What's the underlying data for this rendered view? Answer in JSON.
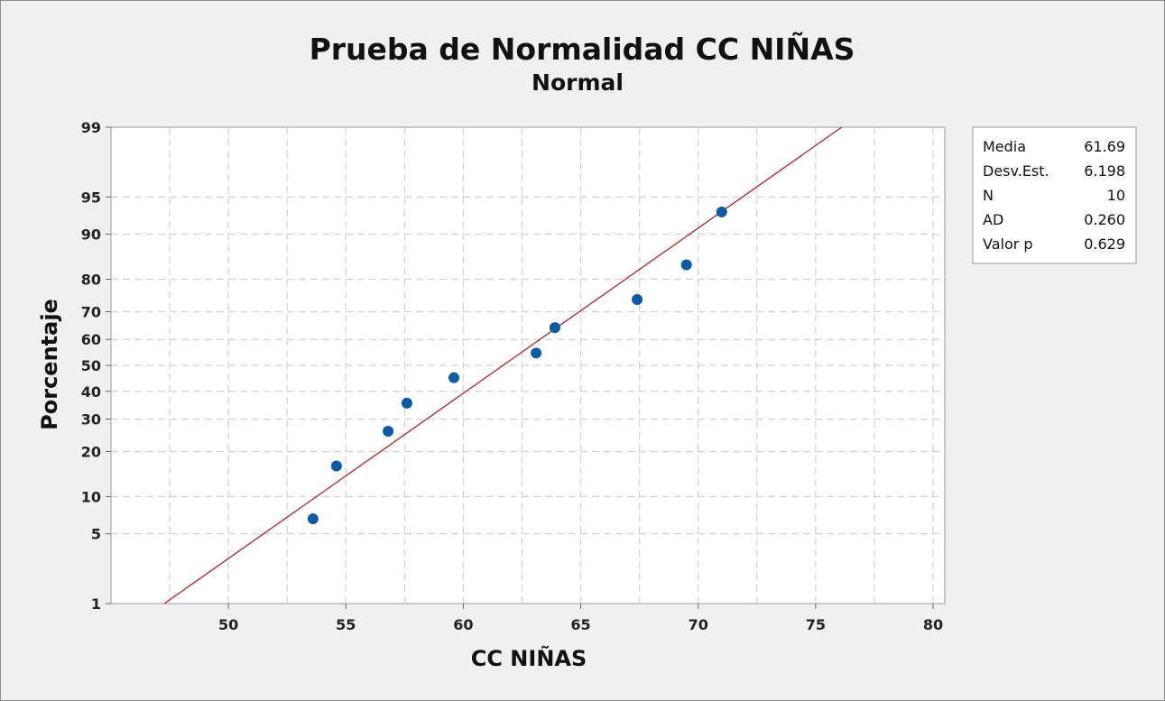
{
  "chart_data": {
    "type": "scatter",
    "title": "Prueba de Normalidad CC NIÑAS",
    "subtitle": "Normal",
    "xlabel": "CC NIÑAS",
    "ylabel": "Porcentaje",
    "xlim": [
      45,
      80.5
    ],
    "ylim": [
      1,
      99
    ],
    "x_ticks": [
      50,
      55,
      60,
      65,
      70,
      75,
      80
    ],
    "y_ticks": [
      1,
      5,
      10,
      20,
      30,
      40,
      50,
      60,
      70,
      80,
      90,
      95,
      99
    ],
    "y_scale": "normal-probability",
    "grid": true,
    "points": [
      {
        "x": 53.6,
        "y": 6.7
      },
      {
        "x": 54.6,
        "y": 16.3
      },
      {
        "x": 56.8,
        "y": 26.0
      },
      {
        "x": 57.6,
        "y": 35.6
      },
      {
        "x": 59.6,
        "y": 45.2
      },
      {
        "x": 63.1,
        "y": 54.8
      },
      {
        "x": 63.9,
        "y": 64.4
      },
      {
        "x": 67.4,
        "y": 74.0
      },
      {
        "x": 69.5,
        "y": 83.7
      },
      {
        "x": 71.0,
        "y": 93.3
      }
    ],
    "fit_line": {
      "mean": 61.69,
      "sd": 6.198
    },
    "colors": {
      "points": "#0b5aa6",
      "fit_line": "#b22222",
      "grid": "#d0d0d0"
    },
    "stats": [
      {
        "label": "Media",
        "value": "61.69"
      },
      {
        "label": "Desv.Est.",
        "value": "6.198"
      },
      {
        "label": "N",
        "value": "10"
      },
      {
        "label": "AD",
        "value": "0.260"
      },
      {
        "label": "Valor p",
        "value": "0.629"
      }
    ]
  }
}
